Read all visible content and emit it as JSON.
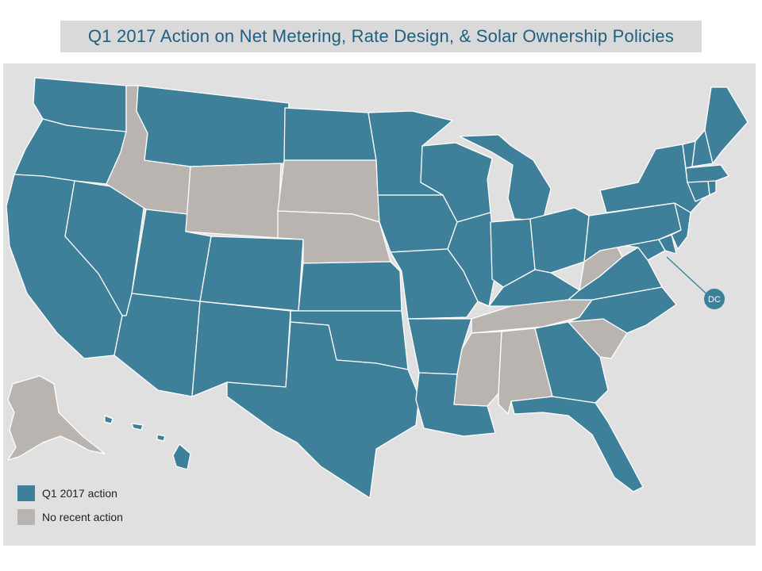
{
  "title": "Q1 2017 Action on Net Metering, Rate Design, & Solar Ownership Policies",
  "colors": {
    "action": "#3e7f99",
    "no_action": "#b9b4b0",
    "background": "#e0e0e0",
    "title_text": "#1f5f7f",
    "border": "#ffffff"
  },
  "legend": {
    "action_label": "Q1 2017 action",
    "no_action_label": "No recent action"
  },
  "dc_label": "DC",
  "states": {
    "action": [
      "WA",
      "OR",
      "CA",
      "NV",
      "UT",
      "AZ",
      "MT",
      "CO",
      "NM",
      "ND",
      "MN",
      "KS",
      "OK",
      "TX",
      "IA",
      "MO",
      "AR",
      "LA",
      "WI",
      "IL",
      "MI",
      "IN",
      "OH",
      "KY",
      "GA",
      "FL",
      "NC",
      "VA",
      "MD",
      "DE",
      "NJ",
      "PA",
      "NY",
      "CT",
      "RI",
      "MA",
      "VT",
      "NH",
      "ME",
      "HI",
      "DC"
    ],
    "no_recent_action": [
      "ID",
      "WY",
      "SD",
      "NE",
      "WV",
      "TN",
      "MS",
      "AL",
      "SC",
      "AK"
    ]
  }
}
